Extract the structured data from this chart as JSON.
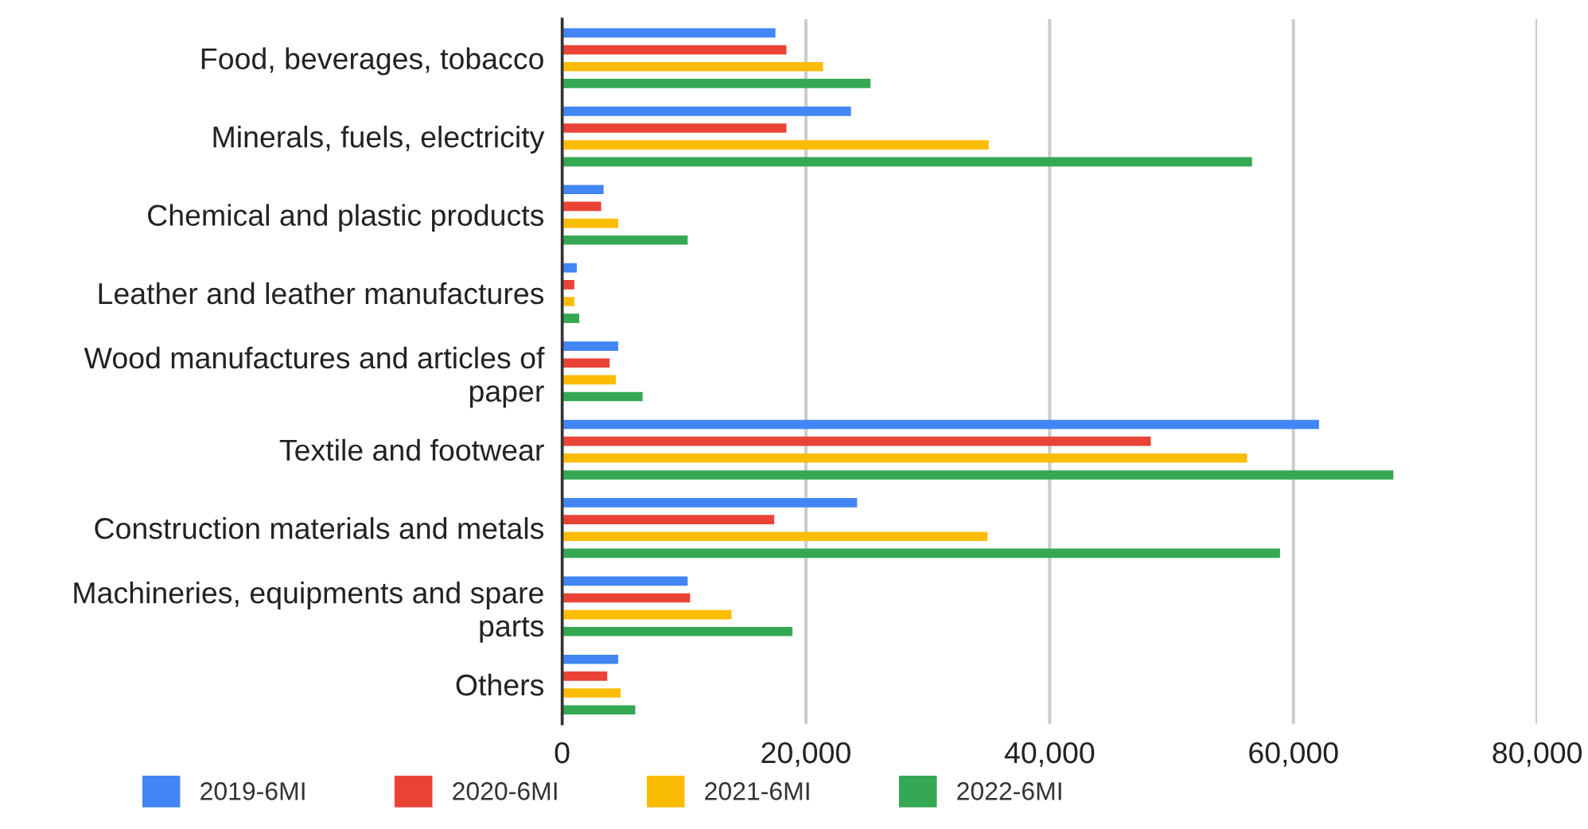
{
  "chart_data": {
    "type": "bar",
    "orientation": "horizontal",
    "categories": [
      "Food, beverages, tobacco",
      "Minerals, fuels, electricity",
      "Chemical and plastic products",
      "Leather and leather manufactures",
      "Wood manufactures and articles of paper",
      "Textile and footwear",
      "Construction materials and metals",
      "Machineries, equipments and spare parts",
      "Others"
    ],
    "series": [
      {
        "name": "2019-6MI",
        "color": "#4285f4",
        "values": [
          17500,
          23700,
          3400,
          1200,
          4600,
          62100,
          24200,
          10300,
          4600
        ]
      },
      {
        "name": "2020-6MI",
        "color": "#ea4335",
        "values": [
          18400,
          18400,
          3200,
          1000,
          3900,
          48300,
          17400,
          10500,
          3700
        ]
      },
      {
        "name": "2021-6MI",
        "color": "#fbbc04",
        "values": [
          21400,
          35000,
          4600,
          1000,
          4400,
          56200,
          34900,
          13900,
          4800
        ]
      },
      {
        "name": "2022-6MI",
        "color": "#34a853",
        "values": [
          25300,
          56600,
          10300,
          1400,
          6600,
          68200,
          58900,
          18900,
          6000
        ]
      }
    ],
    "xlim": [
      0,
      80000
    ],
    "xticks": [
      {
        "value": 0,
        "label": "0"
      },
      {
        "value": 20000,
        "label": "20,000"
      },
      {
        "value": 40000,
        "label": "40,000"
      },
      {
        "value": 60000,
        "label": "60,000"
      },
      {
        "value": 80000,
        "label": "80,000"
      }
    ],
    "grid": "x",
    "legend": "bottom"
  }
}
